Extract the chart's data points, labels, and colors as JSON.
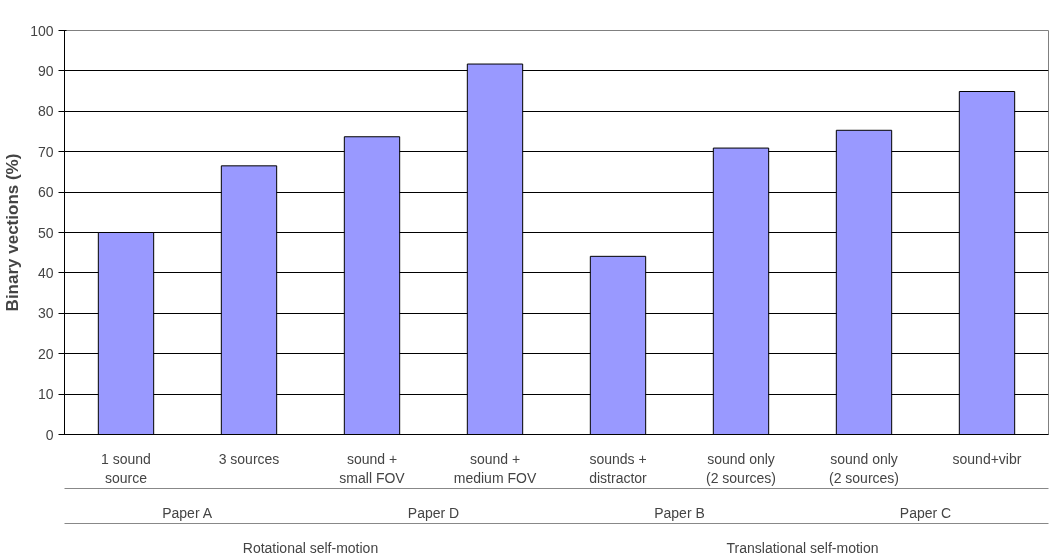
{
  "chart_data": {
    "type": "bar",
    "ylabel": "Binary vections (%)",
    "categories": [
      "1 sound\nsource",
      "3 sources",
      "sound +\nsmall FOV",
      "sound +\nmedium FOV",
      "sounds +\ndistractor",
      "sound only\n(2 sources)",
      "sound only\n(2 sources)",
      "sound+vibr"
    ],
    "values": [
      50,
      66.5,
      73.7,
      91.7,
      44.1,
      70.9,
      75.3,
      84.9
    ],
    "color": "#9999ff",
    "ylim": [
      0,
      100
    ],
    "yticks": [
      0,
      10,
      20,
      30,
      40,
      50,
      60,
      70,
      80,
      90,
      100
    ],
    "grid": "y",
    "annotations": [
      "Paper A",
      "Paper D",
      "Paper B",
      "Paper C",
      "Rotational self-motion",
      "Translational self-motion"
    ]
  }
}
